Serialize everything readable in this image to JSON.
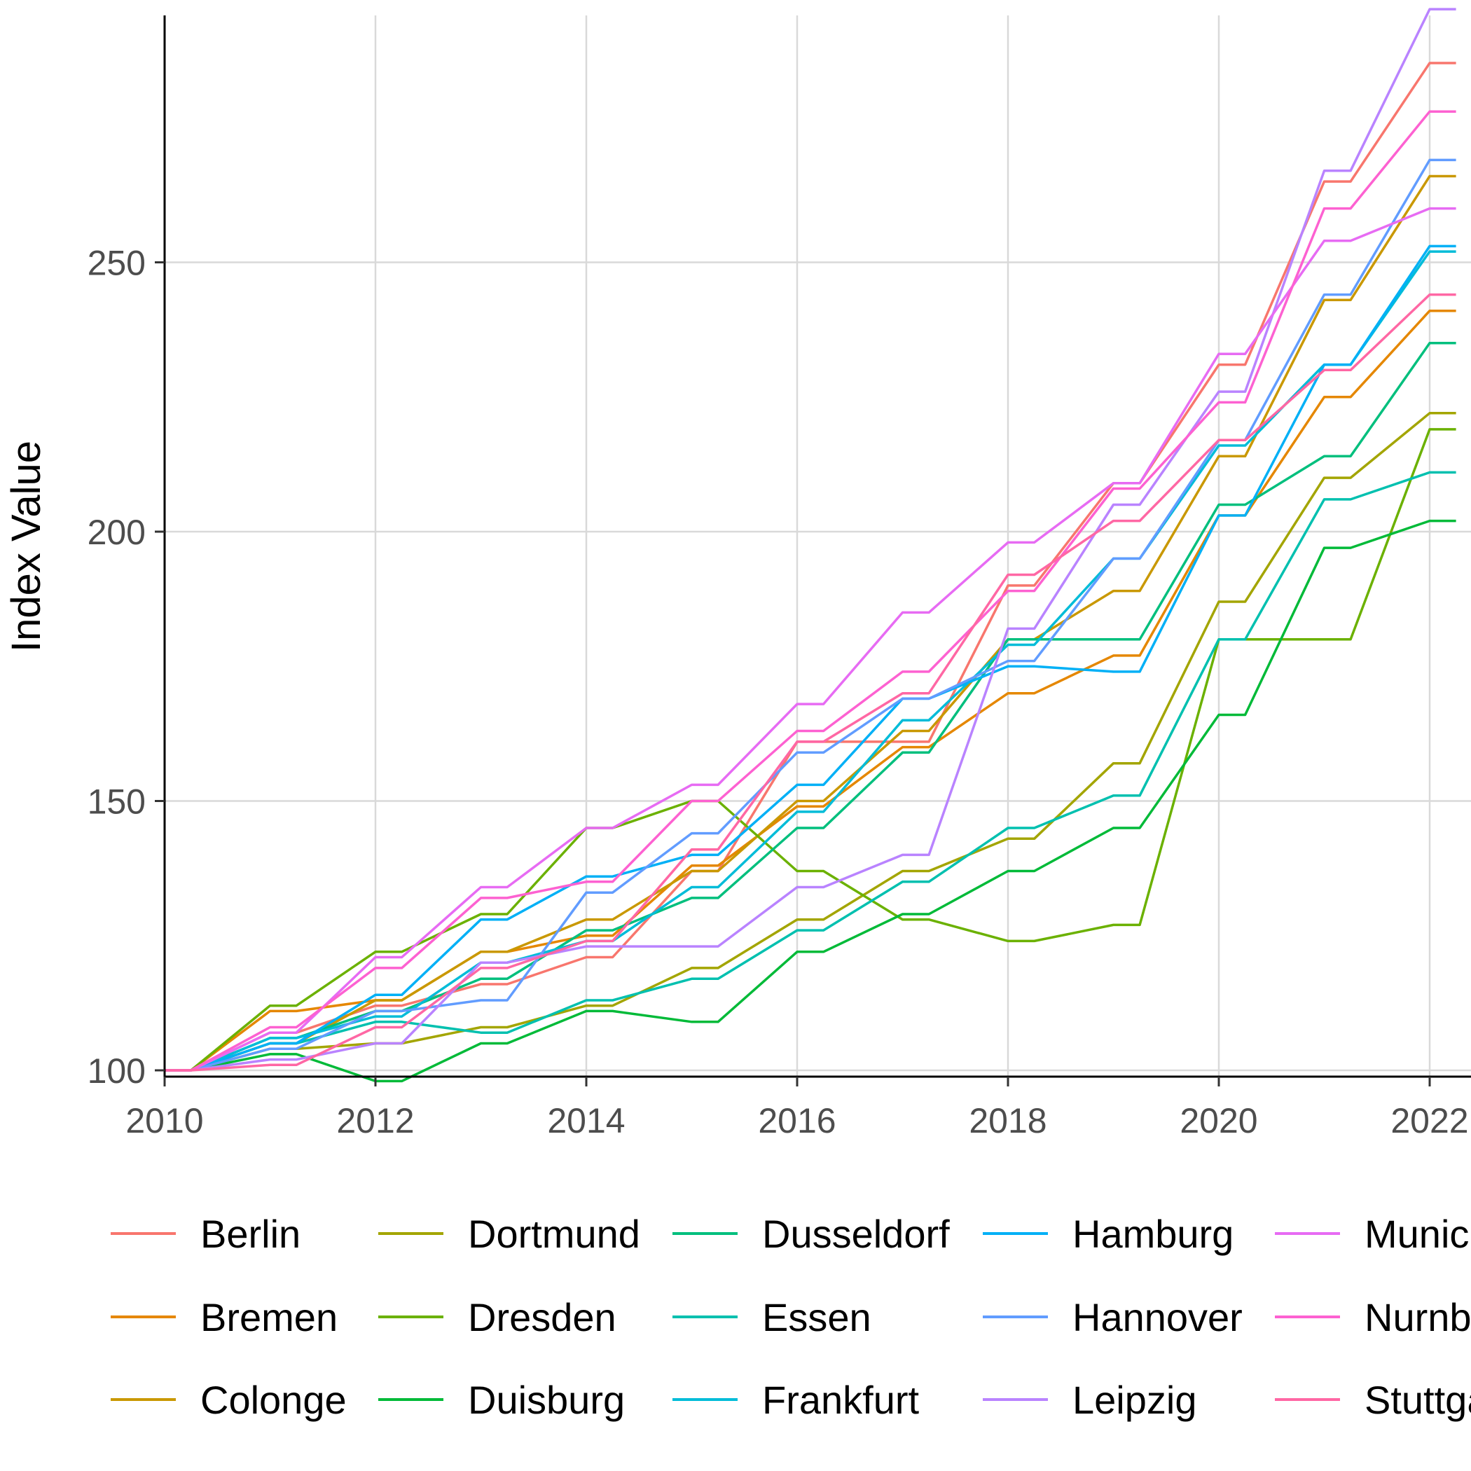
{
  "chart_data": {
    "type": "line",
    "title": "",
    "xlabel": "",
    "ylabel": "Index Value",
    "xlim": [
      2010,
      2022.25
    ],
    "ylim": [
      99,
      297
    ],
    "x_ticks": [
      "2010",
      "2012",
      "2014",
      "2016",
      "2018",
      "2020",
      "2022"
    ],
    "y_ticks": [
      "100",
      "150",
      "200",
      "250"
    ],
    "grid": true,
    "legend_position": "bottom",
    "step_offset": 0.25,
    "x": [
      2010,
      2011,
      2012,
      2013,
      2014,
      2015,
      2016,
      2017,
      2018,
      2019,
      2020,
      2021,
      2022
    ],
    "series": [
      {
        "name": "Berlin",
        "color": "#F8766D",
        "values": [
          100,
          107,
          112,
          116,
          121,
          137,
          161,
          161,
          190,
          209,
          231,
          265,
          287
        ]
      },
      {
        "name": "Bremen",
        "color": "#E58700",
        "values": [
          100,
          111,
          113,
          122,
          125,
          138,
          149,
          160,
          170,
          177,
          203,
          225,
          241
        ]
      },
      {
        "name": "Colonge",
        "color": "#C99800",
        "values": [
          100,
          105,
          113,
          122,
          128,
          137,
          150,
          163,
          180,
          189,
          214,
          243,
          266
        ]
      },
      {
        "name": "Dortmund",
        "color": "#A3A500",
        "values": [
          100,
          104,
          105,
          108,
          112,
          119,
          128,
          137,
          143,
          157,
          187,
          210,
          222
        ]
      },
      {
        "name": "Dresden",
        "color": "#6BB100",
        "values": [
          100,
          112,
          122,
          129,
          145,
          150,
          137,
          128,
          124,
          127,
          180,
          180,
          219
        ]
      },
      {
        "name": "Duisburg",
        "color": "#00BA38",
        "values": [
          100,
          103,
          98,
          105,
          111,
          109,
          122,
          129,
          137,
          145,
          166,
          197,
          202
        ]
      },
      {
        "name": "Dusseldorf",
        "color": "#00BF7D",
        "values": [
          100,
          106,
          111,
          117,
          126,
          132,
          145,
          159,
          180,
          180,
          205,
          214,
          235
        ]
      },
      {
        "name": "Essen",
        "color": "#00C0AF",
        "values": [
          100,
          105,
          109,
          107,
          113,
          117,
          126,
          135,
          145,
          151,
          180,
          206,
          211
        ]
      },
      {
        "name": "Frankfurt",
        "color": "#00BCD8",
        "values": [
          100,
          106,
          110,
          120,
          124,
          134,
          148,
          165,
          179,
          195,
          216,
          231,
          252
        ]
      },
      {
        "name": "Hamburg",
        "color": "#00B0F6",
        "values": [
          100,
          105,
          114,
          128,
          136,
          140,
          153,
          169,
          175,
          174,
          203,
          231,
          253
        ]
      },
      {
        "name": "Hannover",
        "color": "#619CFF",
        "values": [
          100,
          104,
          111,
          113,
          133,
          144,
          159,
          169,
          176,
          195,
          217,
          244,
          269
        ]
      },
      {
        "name": "Leipzig",
        "color": "#B983FF",
        "values": [
          100,
          102,
          105,
          120,
          123,
          123,
          134,
          140,
          182,
          205,
          226,
          267,
          297
        ]
      },
      {
        "name": "Munich",
        "color": "#E76BF3",
        "values": [
          100,
          107,
          121,
          134,
          145,
          153,
          168,
          185,
          198,
          209,
          233,
          254,
          260
        ]
      },
      {
        "name": "Nurnberg",
        "color": "#FD61D1",
        "values": [
          100,
          108,
          119,
          132,
          135,
          150,
          163,
          174,
          189,
          208,
          224,
          260,
          278
        ]
      },
      {
        "name": "Stuttgart",
        "color": "#FF67A4",
        "values": [
          100,
          101,
          108,
          119,
          124,
          141,
          161,
          170,
          192,
          202,
          217,
          230,
          244
        ]
      }
    ]
  }
}
